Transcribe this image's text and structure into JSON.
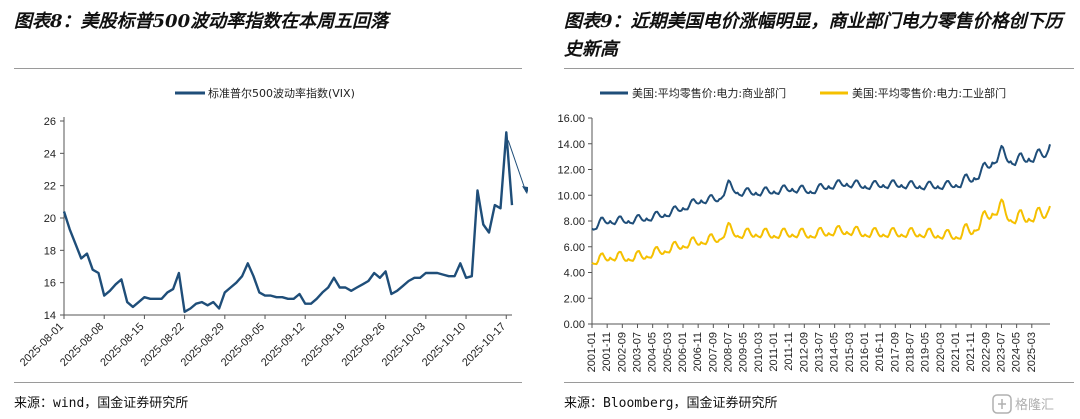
{
  "left": {
    "title": "图表8：美股标普500波动率指数在本周五回落",
    "source": "来源：wind，国金证券研究所",
    "chart_data": {
      "type": "line",
      "series": [
        {
          "name": "标准普尔500波动率指数(VIX)",
          "color": "#1f4e79",
          "values": [
            20.4,
            19.3,
            18.4,
            17.5,
            17.8,
            16.8,
            16.6,
            15.2,
            15.5,
            15.9,
            16.2,
            14.8,
            14.5,
            14.8,
            15.1,
            15.0,
            15.0,
            15.0,
            15.4,
            15.6,
            16.6,
            14.2,
            14.4,
            14.7,
            14.8,
            14.6,
            14.8,
            14.4,
            15.4,
            15.7,
            16.0,
            16.4,
            17.2,
            16.4,
            15.4,
            15.2,
            15.2,
            15.1,
            15.1,
            15.0,
            15.0,
            15.3,
            14.7,
            14.7,
            15.0,
            15.4,
            15.7,
            16.3,
            15.7,
            15.7,
            15.5,
            15.7,
            15.9,
            16.1,
            16.6,
            16.3,
            16.7,
            15.3,
            15.5,
            15.8,
            16.1,
            16.3,
            16.3,
            16.6,
            16.6,
            16.6,
            16.5,
            16.4,
            16.4,
            17.2,
            16.3,
            16.4,
            21.7,
            19.6,
            19.1,
            20.8,
            20.6,
            25.3,
            20.8
          ]
        }
      ],
      "xticks": [
        "2025-08-01",
        "2025-08-08",
        "2025-08-15",
        "2025-08-22",
        "2025-08-29",
        "2025-09-05",
        "2025-09-12",
        "2025-09-19",
        "2025-09-26",
        "2025-10-03",
        "2025-10-10",
        "2025-10-17"
      ],
      "xtick_index": [
        0,
        7,
        14,
        21,
        28,
        35,
        42,
        49,
        56,
        63,
        70,
        77
      ],
      "yticks": [
        14,
        16,
        18,
        20,
        22,
        24,
        26
      ],
      "ylim": [
        14,
        26
      ],
      "legend_position": "top-center",
      "annotation": "arrow indicating decline"
    }
  },
  "right": {
    "title": "图表9：近期美国电价涨幅明显，商业部门电力零售价格创下历史新高",
    "source": "来源：Bloomberg，国金证券研究所",
    "chart_data": {
      "type": "line",
      "start": "2001-01",
      "frequency": "monthly",
      "series": [
        {
          "name": "美国:平均零售价:电力:商业部门",
          "color": "#1f4e79",
          "anchors": [
            [
              0,
              7.3
            ],
            [
              6,
              7.8
            ],
            [
              12,
              7.9
            ],
            [
              24,
              7.9
            ],
            [
              36,
              8.1
            ],
            [
              48,
              8.4
            ],
            [
              60,
              8.9
            ],
            [
              72,
              9.5
            ],
            [
              84,
              9.6
            ],
            [
              90,
              10.7
            ],
            [
              96,
              10.1
            ],
            [
              108,
              10.1
            ],
            [
              120,
              10.2
            ],
            [
              132,
              10.4
            ],
            [
              144,
              10.2
            ],
            [
              156,
              10.6
            ],
            [
              168,
              10.8
            ],
            [
              180,
              10.6
            ],
            [
              192,
              10.7
            ],
            [
              204,
              10.7
            ],
            [
              216,
              10.6
            ],
            [
              228,
              10.6
            ],
            [
              240,
              10.7
            ],
            [
              252,
              11.2
            ],
            [
              258,
              11.8
            ],
            [
              264,
              12.4
            ],
            [
              270,
              13.2
            ],
            [
              276,
              12.5
            ],
            [
              288,
              12.7
            ],
            [
              297,
              13.0
            ],
            [
              300,
              13.1
            ],
            [
              302,
              14.1
            ]
          ]
        },
        {
          "name": "美国:平均零售价:电力:工业部门",
          "color": "#f5c000",
          "anchors": [
            [
              0,
              4.7
            ],
            [
              12,
              5.1
            ],
            [
              24,
              5.0
            ],
            [
              36,
              5.2
            ],
            [
              48,
              5.6
            ],
            [
              60,
              6.0
            ],
            [
              72,
              6.3
            ],
            [
              84,
              6.5
            ],
            [
              90,
              7.3
            ],
            [
              96,
              6.8
            ],
            [
              108,
              6.9
            ],
            [
              120,
              6.8
            ],
            [
              132,
              6.9
            ],
            [
              144,
              6.8
            ],
            [
              156,
              7.0
            ],
            [
              168,
              7.1
            ],
            [
              180,
              6.9
            ],
            [
              192,
              6.9
            ],
            [
              204,
              6.9
            ],
            [
              216,
              6.9
            ],
            [
              228,
              6.8
            ],
            [
              240,
              6.7
            ],
            [
              252,
              7.2
            ],
            [
              258,
              7.9
            ],
            [
              264,
              8.5
            ],
            [
              270,
              8.9
            ],
            [
              276,
              8.0
            ],
            [
              288,
              8.1
            ],
            [
              297,
              8.3
            ],
            [
              300,
              8.5
            ],
            [
              302,
              9.3
            ]
          ]
        }
      ],
      "xticks": [
        "2001-01",
        "2001-11",
        "2002-09",
        "2003-07",
        "2004-05",
        "2005-03",
        "2006-01",
        "2006-11",
        "2007-09",
        "2008-07",
        "2009-05",
        "2010-03",
        "2011-01",
        "2011-11",
        "2012-09",
        "2013-07",
        "2014-05",
        "2015-03",
        "2016-01",
        "2016-11",
        "2017-09",
        "2018-07",
        "2019-05",
        "2020-03",
        "2021-01",
        "2021-11",
        "2022-09",
        "2023-07",
        "2024-05",
        "2025-03"
      ],
      "yticks": [
        "0.00",
        "2.00",
        "4.00",
        "6.00",
        "8.00",
        "10.00",
        "12.00",
        "14.00",
        "16.00"
      ],
      "ylim": [
        0,
        16
      ],
      "legend_position": "top"
    }
  },
  "watermark": {
    "icon": "gelonghui-logo",
    "text": "格隆汇"
  }
}
